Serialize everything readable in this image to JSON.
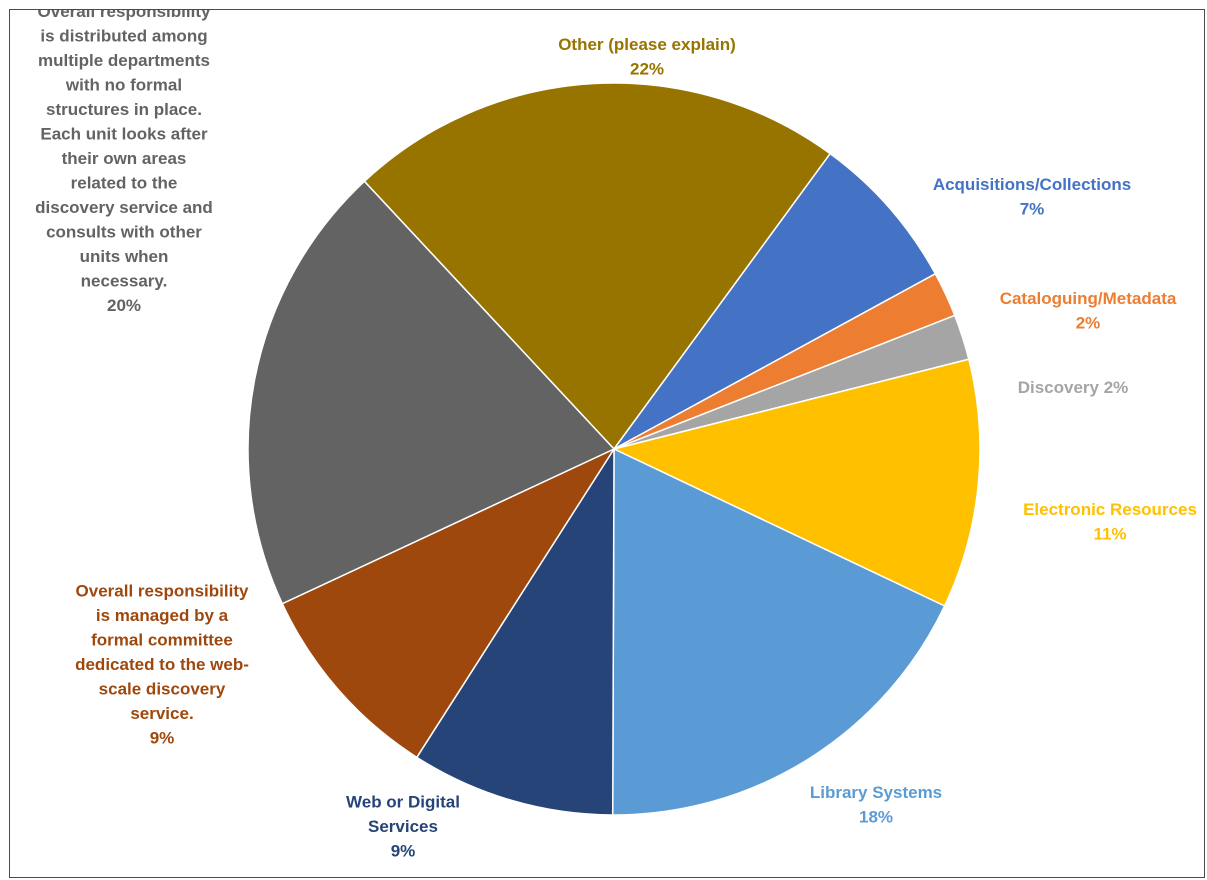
{
  "chart_data": {
    "type": "pie",
    "title": "",
    "slices": [
      {
        "lines": [
          "Other (please explain)",
          "22%"
        ],
        "value": 22,
        "color": "#977400"
      },
      {
        "lines": [
          "Acquisitions/Collections",
          "7%"
        ],
        "value": 7,
        "color": "#4472c4"
      },
      {
        "lines": [
          "Cataloguing/Metadata",
          "2%"
        ],
        "value": 2,
        "color": "#ed7d31"
      },
      {
        "lines": [
          "Discovery 2%"
        ],
        "value": 2,
        "color": "#a5a5a5"
      },
      {
        "lines": [
          "Electronic Resources",
          "11%"
        ],
        "value": 11,
        "color": "#ffc000"
      },
      {
        "lines": [
          "Library Systems",
          "18%"
        ],
        "value": 18,
        "color": "#5b9bd5"
      },
      {
        "lines": [
          "Web or Digital",
          "Services",
          "9%"
        ],
        "value": 9,
        "color": "#264478"
      },
      {
        "lines": [
          "Overall responsibility",
          "is managed by a",
          "formal committee",
          "dedicated to the web-",
          "scale discovery",
          "service.",
          "9%"
        ],
        "value": 9,
        "color": "#9e480e"
      },
      {
        "lines": [
          "Overall responsibility",
          "is distributed among",
          "multiple departments",
          "with no formal",
          "structures in place.",
          "Each unit looks after",
          "their own areas",
          "related to the",
          "discovery service and",
          "consults with other",
          "units when",
          "necessary.",
          "20%"
        ],
        "value": 20,
        "color": "#636363"
      }
    ]
  }
}
